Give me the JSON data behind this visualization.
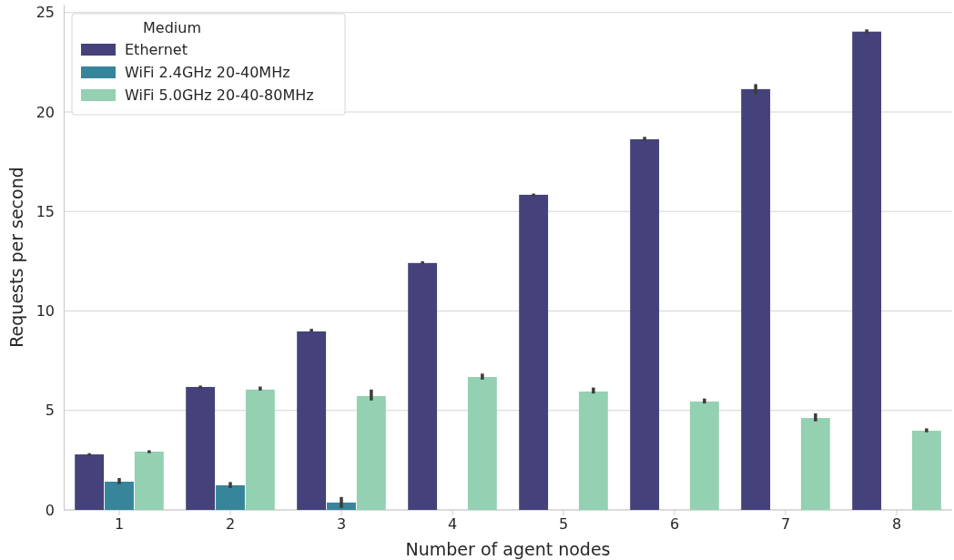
{
  "chart_data": {
    "type": "bar",
    "xlabel": "Number of agent nodes",
    "ylabel": "Requests per second",
    "legend_title": "Medium",
    "legend": "top left",
    "grid": "y",
    "categories": [
      "1",
      "2",
      "3",
      "4",
      "5",
      "6",
      "7",
      "8"
    ],
    "ylim": [
      0,
      25.4
    ],
    "yticks": [
      0,
      5,
      10,
      15,
      20,
      25
    ],
    "series": [
      {
        "name": "Ethernet",
        "color": "#45417a",
        "values": [
          2.79,
          6.18,
          8.97,
          12.41,
          15.84,
          18.63,
          21.15,
          24.04
        ],
        "errors": [
          [
            2.73,
            2.85
          ],
          [
            6.1,
            6.25
          ],
          [
            8.95,
            9.1
          ],
          [
            12.35,
            12.5
          ],
          [
            15.75,
            15.9
          ],
          [
            18.55,
            18.75
          ],
          [
            20.9,
            21.4
          ],
          [
            23.95,
            24.15
          ]
        ]
      },
      {
        "name": "WiFi 2.4GHz 20-40MHz",
        "color": "#37859b",
        "values": [
          1.42,
          1.24,
          0.37,
          0,
          0,
          0,
          0,
          0
        ],
        "errors": [
          [
            1.3,
            1.6
          ],
          [
            1.1,
            1.4
          ],
          [
            0.1,
            0.65
          ],
          null,
          null,
          null,
          null,
          null
        ]
      },
      {
        "name": "WiFi 5.0GHz 20-40-80MHz",
        "color": "#94d0b2",
        "values": [
          2.93,
          6.05,
          5.72,
          6.68,
          5.95,
          5.45,
          4.62,
          3.98
        ],
        "errors": [
          [
            2.85,
            3.0
          ],
          [
            6.0,
            6.2
          ],
          [
            5.5,
            6.05
          ],
          [
            6.55,
            6.85
          ],
          [
            5.85,
            6.15
          ],
          [
            5.35,
            5.6
          ],
          [
            4.45,
            4.85
          ],
          [
            3.9,
            4.1
          ]
        ]
      }
    ]
  }
}
